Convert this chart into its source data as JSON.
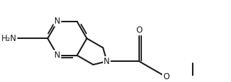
{
  "bg_color": "#ffffff",
  "line_color": "#1a1a1a",
  "line_width": 1.5,
  "font_size": 8.5,
  "figsize": [
    3.32,
    1.18
  ],
  "dpi": 100,
  "xlim": [
    -0.5,
    5.8
  ],
  "ylim": [
    -0.1,
    2.1
  ]
}
